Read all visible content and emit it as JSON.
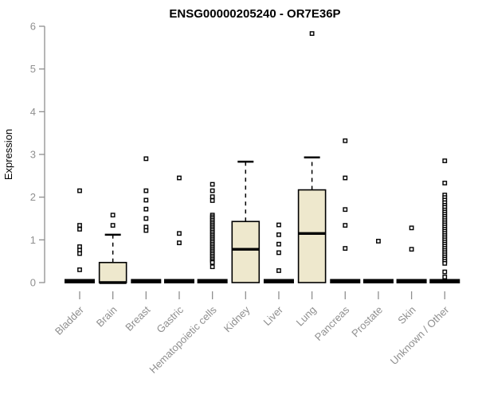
{
  "colors": {
    "background": "#FFFFFF",
    "box_fill": "#EEE8CD",
    "box_border": "#000000",
    "median": "#000000",
    "outlier_stroke": "#000000",
    "outlier_fill": "#FFFFFF",
    "axis": "#8F8F8F",
    "tick_label": "#8F8F8F",
    "title": "#000000"
  },
  "chart_data": {
    "type": "boxplot",
    "title": "ENSG00000205240 - OR7E36P",
    "xlabel": "",
    "ylabel": "Expression",
    "ylim": [
      0,
      6
    ],
    "yticks": [
      0,
      1,
      2,
      3,
      4,
      5,
      6
    ],
    "grid": false,
    "legend": null,
    "categories": [
      "Bladder",
      "Brain",
      "Breast",
      "Gastric",
      "Hematopoietic cells",
      "Kidney",
      "Liver",
      "Lung",
      "Pancreas",
      "Prostate",
      "Skin",
      "Unknown / Other"
    ],
    "series": [
      {
        "name": "Bladder",
        "q1": 0,
        "median": 0,
        "q3": 0,
        "whisker_low": 0,
        "whisker_high": 0,
        "outliers": [
          2.15,
          1.34,
          1.25,
          0.84,
          0.76,
          0.68,
          0.3
        ]
      },
      {
        "name": "Brain",
        "q1": 0,
        "median": 0,
        "q3": 0.47,
        "whisker_low": 0,
        "whisker_high": 1.12,
        "outliers": [
          1.58,
          1.34
        ]
      },
      {
        "name": "Breast",
        "q1": 0,
        "median": 0,
        "q3": 0,
        "whisker_low": 0,
        "whisker_high": 0,
        "outliers": [
          2.9,
          2.15,
          1.93,
          1.72,
          1.5,
          1.3,
          1.22
        ]
      },
      {
        "name": "Gastric",
        "q1": 0,
        "median": 0,
        "q3": 0,
        "whisker_low": 0,
        "whisker_high": 0,
        "outliers": [
          2.45,
          1.15,
          0.93
        ]
      },
      {
        "name": "Hematopoietic cells",
        "q1": 0,
        "median": 0,
        "q3": 0,
        "whisker_low": 0,
        "whisker_high": 0,
        "outliers": [
          2.3,
          2.15,
          2.01,
          1.92,
          1.58,
          1.54,
          1.5,
          1.46,
          1.42,
          1.38,
          1.34,
          1.3,
          1.26,
          1.22,
          1.18,
          1.14,
          1.1,
          1.06,
          1.02,
          0.98,
          0.94,
          0.9,
          0.86,
          0.82,
          0.78,
          0.74,
          0.7,
          0.66,
          0.62,
          0.58,
          0.54,
          0.5,
          0.47,
          0.37
        ]
      },
      {
        "name": "Kidney",
        "q1": 0,
        "median": 0.78,
        "q3": 1.43,
        "whisker_low": 0,
        "whisker_high": 2.83,
        "outliers": []
      },
      {
        "name": "Liver",
        "q1": 0,
        "median": 0,
        "q3": 0,
        "whisker_low": 0,
        "whisker_high": 0,
        "outliers": [
          1.35,
          1.12,
          0.9,
          0.7,
          0.28
        ]
      },
      {
        "name": "Lung",
        "q1": 0,
        "median": 1.15,
        "q3": 2.17,
        "whisker_low": 0,
        "whisker_high": 2.93,
        "outliers": [
          5.83
        ]
      },
      {
        "name": "Pancreas",
        "q1": 0,
        "median": 0,
        "q3": 0,
        "whisker_low": 0,
        "whisker_high": 0,
        "outliers": [
          3.32,
          2.45,
          1.71,
          1.34,
          0.8
        ]
      },
      {
        "name": "Prostate",
        "q1": 0,
        "median": 0,
        "q3": 0,
        "whisker_low": 0,
        "whisker_high": 0,
        "outliers": [
          0.97
        ]
      },
      {
        "name": "Skin",
        "q1": 0,
        "median": 0,
        "q3": 0,
        "whisker_low": 0,
        "whisker_high": 0,
        "outliers": [
          1.28,
          0.78
        ]
      },
      {
        "name": "Unknown / Other",
        "q1": 0,
        "median": 0,
        "q3": 0,
        "whisker_low": 0,
        "whisker_high": 0,
        "outliers": [
          2.85,
          2.33,
          2.05,
          1.99,
          1.93,
          1.87,
          1.81,
          1.76,
          1.7,
          1.65,
          1.6,
          1.55,
          1.5,
          1.45,
          1.4,
          1.35,
          1.3,
          1.25,
          1.2,
          1.15,
          1.1,
          1.05,
          1.0,
          0.95,
          0.9,
          0.85,
          0.8,
          0.75,
          0.7,
          0.65,
          0.6,
          0.55,
          0.5,
          0.45,
          0.25,
          0.13
        ]
      }
    ]
  }
}
